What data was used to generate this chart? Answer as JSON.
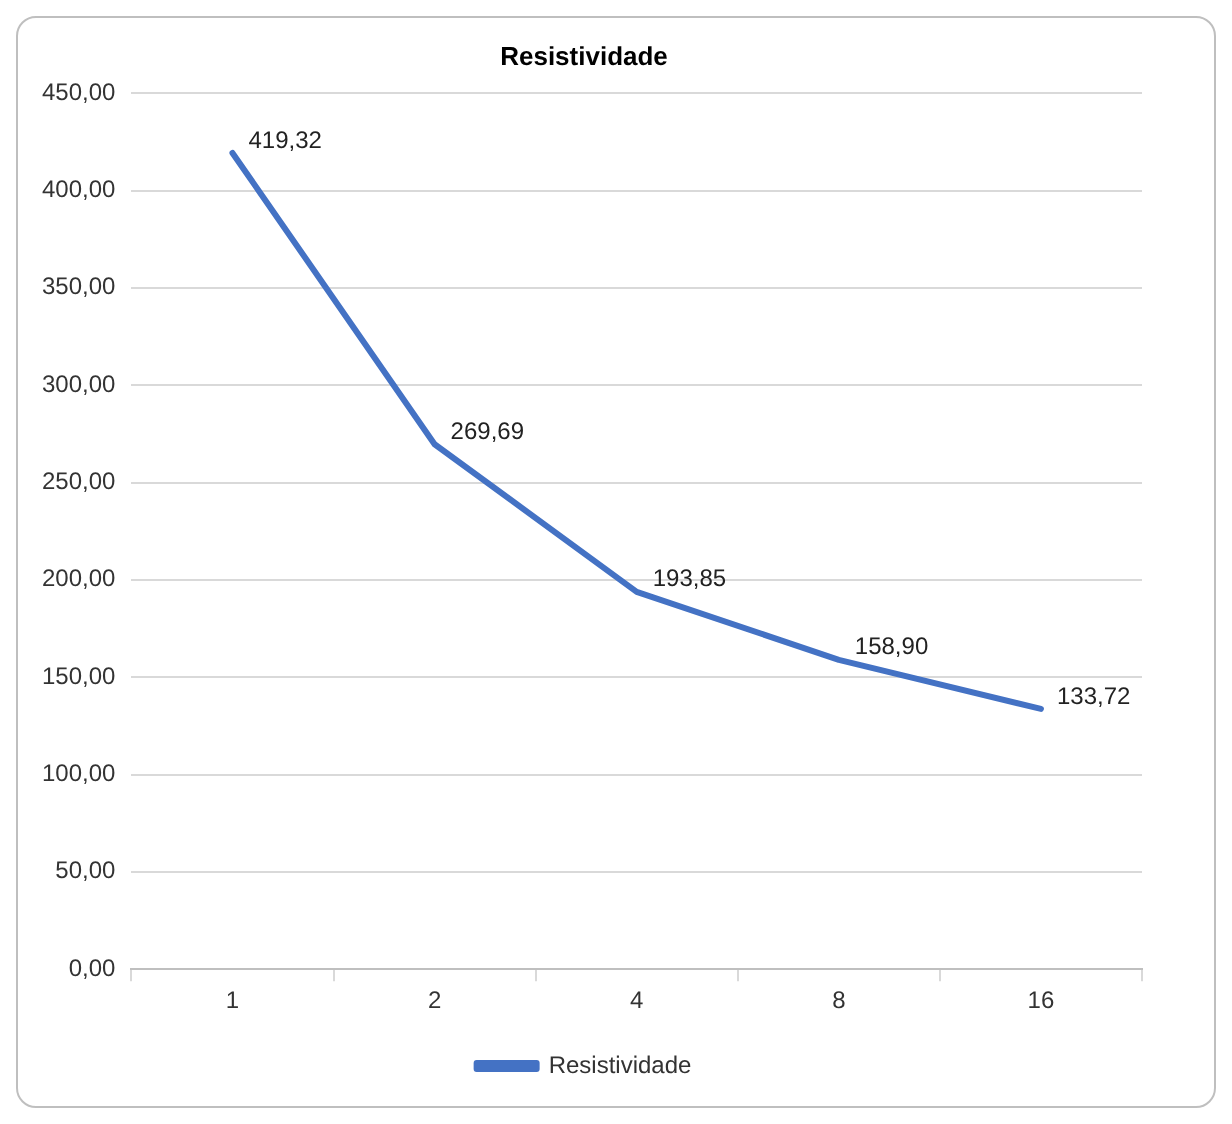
{
  "chart_data": {
    "type": "line",
    "title": "Resistividade",
    "categories": [
      "1",
      "2",
      "4",
      "8",
      "16"
    ],
    "series": [
      {
        "name": "Resistividade",
        "color": "#4472c4",
        "values": [
          419.32,
          269.69,
          193.85,
          158.9,
          133.72
        ],
        "value_labels": [
          "419,32",
          "269,69",
          "193,85",
          "158,90",
          "133,72"
        ]
      }
    ],
    "ylim": [
      0,
      450
    ],
    "yticks": [
      {
        "value": 0,
        "label": "0,00"
      },
      {
        "value": 50,
        "label": "50,00"
      },
      {
        "value": 100,
        "label": "100,00"
      },
      {
        "value": 150,
        "label": "150,00"
      },
      {
        "value": 200,
        "label": "200,00"
      },
      {
        "value": 250,
        "label": "250,00"
      },
      {
        "value": 300,
        "label": "300,00"
      },
      {
        "value": 350,
        "label": "350,00"
      },
      {
        "value": 400,
        "label": "400,00"
      },
      {
        "value": 450,
        "label": "450,00"
      }
    ],
    "grid": "y",
    "legend": "bottom",
    "marker": "none",
    "line_style": "solid"
  }
}
